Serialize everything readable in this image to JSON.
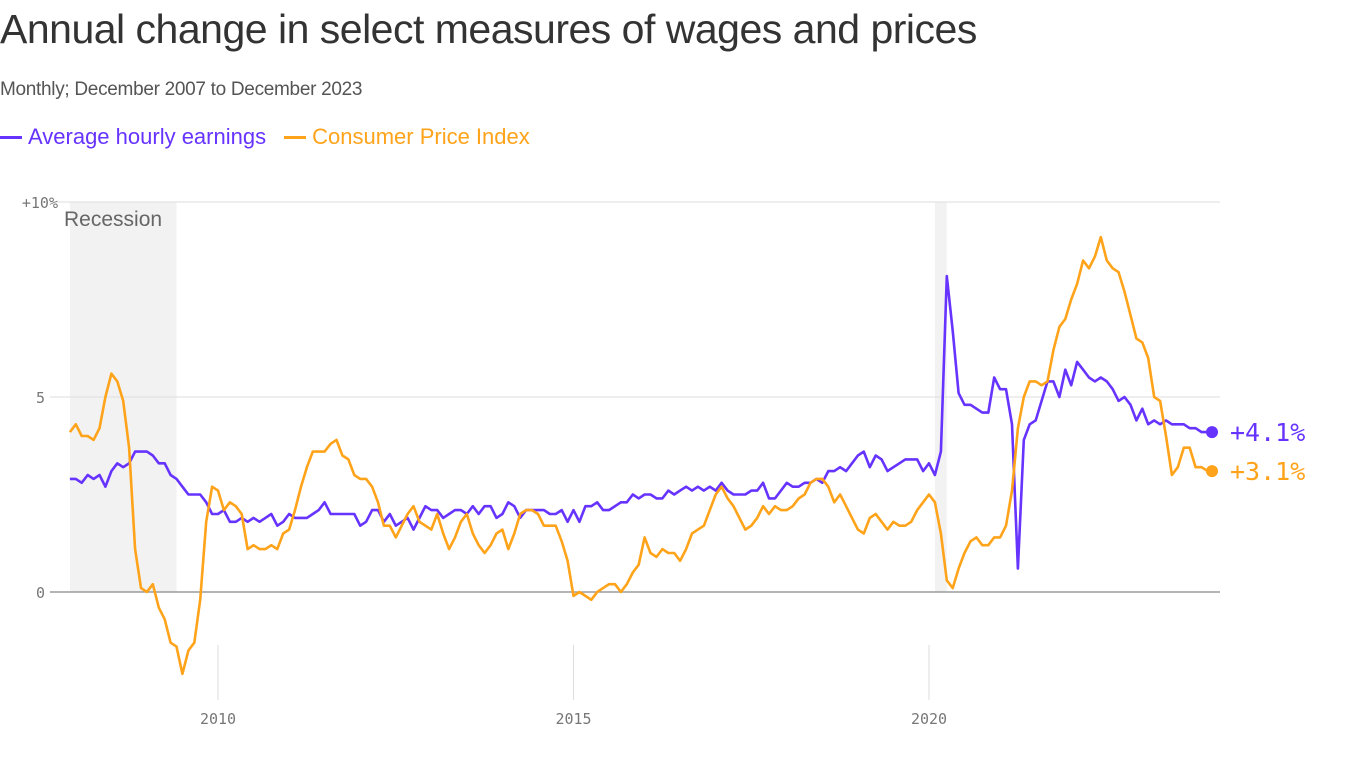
{
  "title": "Annual change in select measures of wages and prices",
  "subtitle": "Monthly; December 2007 to December 2023",
  "chart_data": {
    "type": "line",
    "title": "Annual change in select measures of wages and prices",
    "subtitle": "Monthly; December 2007 to December 2023",
    "x_start": "2007-12",
    "x_end": "2023-12",
    "x_frequency": "monthly",
    "x_ticks": [
      "2010",
      "2015",
      "2020"
    ],
    "y_ticks": [
      {
        "value": 10,
        "label": "+10%"
      },
      {
        "value": 5,
        "label": "5"
      },
      {
        "value": 0,
        "label": "0"
      }
    ],
    "ylim": [
      -2.5,
      10
    ],
    "grid": "horizontal",
    "legend_placement": "top-left",
    "recession_label": "Recession",
    "recessions": [
      {
        "start": "2007-12",
        "end": "2009-06"
      },
      {
        "start": "2020-02",
        "end": "2020-04"
      }
    ],
    "series": [
      {
        "name": "Average hourly earnings",
        "color": "#6633ff",
        "end_label": "+4.1%",
        "values": [
          2.9,
          2.9,
          2.8,
          3.0,
          2.9,
          3.0,
          2.7,
          3.1,
          3.3,
          3.2,
          3.3,
          3.6,
          3.6,
          3.6,
          3.5,
          3.3,
          3.3,
          3.0,
          2.9,
          2.7,
          2.5,
          2.5,
          2.5,
          2.3,
          2.0,
          2.0,
          2.1,
          1.8,
          1.8,
          1.9,
          1.8,
          1.9,
          1.8,
          1.9,
          2.0,
          1.7,
          1.8,
          2.0,
          1.9,
          1.9,
          1.9,
          2.0,
          2.1,
          2.3,
          2.0,
          2.0,
          2.0,
          2.0,
          2.0,
          1.7,
          1.8,
          2.1,
          2.1,
          1.8,
          2.0,
          1.7,
          1.8,
          1.9,
          1.6,
          1.9,
          2.2,
          2.1,
          2.1,
          1.9,
          2.0,
          2.1,
          2.1,
          2.0,
          2.2,
          2.0,
          2.2,
          2.2,
          1.9,
          2.0,
          2.3,
          2.2,
          1.9,
          2.1,
          2.1,
          2.1,
          2.1,
          2.0,
          2.0,
          2.1,
          1.8,
          2.1,
          1.8,
          2.2,
          2.2,
          2.3,
          2.1,
          2.1,
          2.2,
          2.3,
          2.3,
          2.5,
          2.4,
          2.5,
          2.5,
          2.4,
          2.4,
          2.6,
          2.5,
          2.6,
          2.7,
          2.6,
          2.7,
          2.6,
          2.7,
          2.6,
          2.8,
          2.6,
          2.5,
          2.5,
          2.5,
          2.6,
          2.6,
          2.8,
          2.4,
          2.4,
          2.6,
          2.8,
          2.7,
          2.7,
          2.8,
          2.8,
          2.9,
          2.8,
          3.1,
          3.1,
          3.2,
          3.1,
          3.3,
          3.5,
          3.6,
          3.2,
          3.5,
          3.4,
          3.1,
          3.2,
          3.3,
          3.4,
          3.4,
          3.4,
          3.1,
          3.3,
          3.0,
          3.6,
          8.1,
          6.7,
          5.1,
          4.8,
          4.8,
          4.7,
          4.6,
          4.6,
          5.5,
          5.2,
          5.2,
          4.3,
          0.6,
          3.9,
          4.3,
          4.4,
          4.9,
          5.4,
          5.4,
          5.0,
          5.7,
          5.3,
          5.9,
          5.7,
          5.5,
          5.4,
          5.5,
          5.4,
          5.2,
          4.9,
          5.0,
          4.8,
          4.4,
          4.7,
          4.3,
          4.4,
          4.3,
          4.4,
          4.3,
          4.3,
          4.3,
          4.2,
          4.2,
          4.1,
          4.1
        ]
      },
      {
        "name": "Consumer Price Index",
        "color": "#ffa31a",
        "end_label": "+3.1%",
        "values": [
          4.1,
          4.3,
          4.0,
          4.0,
          3.9,
          4.2,
          5.0,
          5.6,
          5.4,
          4.9,
          3.7,
          1.1,
          0.1,
          0.0,
          0.2,
          -0.4,
          -0.7,
          -1.3,
          -1.4,
          -2.1,
          -1.5,
          -1.3,
          -0.2,
          1.8,
          2.7,
          2.6,
          2.1,
          2.3,
          2.2,
          2.0,
          1.1,
          1.2,
          1.1,
          1.1,
          1.2,
          1.1,
          1.5,
          1.6,
          2.1,
          2.7,
          3.2,
          3.6,
          3.6,
          3.6,
          3.8,
          3.9,
          3.5,
          3.4,
          3.0,
          2.9,
          2.9,
          2.7,
          2.3,
          1.7,
          1.7,
          1.4,
          1.7,
          2.0,
          2.2,
          1.8,
          1.7,
          1.6,
          2.0,
          1.5,
          1.1,
          1.4,
          1.8,
          2.0,
          1.5,
          1.2,
          1.0,
          1.2,
          1.5,
          1.6,
          1.1,
          1.5,
          2.0,
          2.1,
          2.1,
          2.0,
          1.7,
          1.7,
          1.7,
          1.3,
          0.8,
          -0.1,
          0.0,
          -0.1,
          -0.2,
          0.0,
          0.1,
          0.2,
          0.2,
          0.0,
          0.2,
          0.5,
          0.7,
          1.4,
          1.0,
          0.9,
          1.1,
          1.0,
          1.0,
          0.8,
          1.1,
          1.5,
          1.6,
          1.7,
          2.1,
          2.5,
          2.7,
          2.4,
          2.2,
          1.9,
          1.6,
          1.7,
          1.9,
          2.2,
          2.0,
          2.2,
          2.1,
          2.1,
          2.2,
          2.4,
          2.5,
          2.8,
          2.9,
          2.9,
          2.7,
          2.3,
          2.5,
          2.2,
          1.9,
          1.6,
          1.5,
          1.9,
          2.0,
          1.8,
          1.6,
          1.8,
          1.7,
          1.7,
          1.8,
          2.1,
          2.3,
          2.5,
          2.3,
          1.5,
          0.3,
          0.1,
          0.6,
          1.0,
          1.3,
          1.4,
          1.2,
          1.2,
          1.4,
          1.4,
          1.7,
          2.6,
          4.2,
          5.0,
          5.4,
          5.4,
          5.3,
          5.4,
          6.2,
          6.8,
          7.0,
          7.5,
          7.9,
          8.5,
          8.3,
          8.6,
          9.1,
          8.5,
          8.3,
          8.2,
          7.7,
          7.1,
          6.5,
          6.4,
          6.0,
          5.0,
          4.9,
          4.0,
          3.0,
          3.2,
          3.7,
          3.7,
          3.2,
          3.2,
          3.1
        ]
      }
    ]
  }
}
